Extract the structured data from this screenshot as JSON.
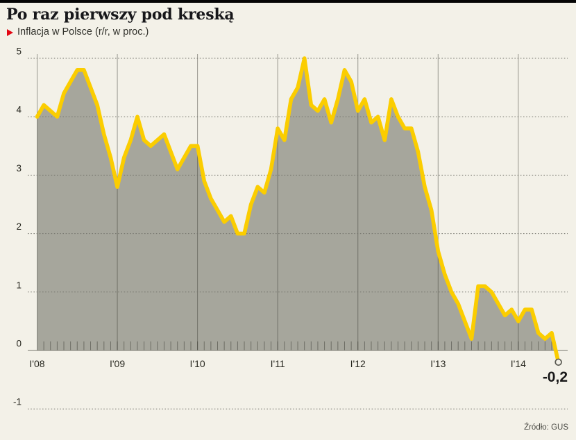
{
  "header": {
    "title": "Po raz pierwszy pod kreską",
    "subtitle": "Inflacja w Polsce (r/r, w proc.)"
  },
  "chart_data": {
    "type": "area",
    "title": "Po raz pierwszy pod kreską",
    "subtitle": "Inflacja w Polsce (r/r, w proc.)",
    "source": "Źródło: GUS",
    "x_start": "2008-01",
    "x_end": "2014-07",
    "x_tick_labels": [
      "I'08",
      "I'09",
      "I'10",
      "I'11",
      "I'12",
      "I'13",
      "I'14"
    ],
    "y_ticks": [
      5,
      4,
      3,
      2,
      1,
      0,
      -1
    ],
    "ylim": [
      -1,
      5
    ],
    "grid": {
      "horizontal": "dotted",
      "vertical": "solid yearly lines",
      "monthly_ticks_on_baseline": true
    },
    "series": [
      {
        "name": "Inflacja w Polsce (r/r, w proc.)",
        "monthly_values": [
          4.0,
          4.2,
          4.1,
          4.0,
          4.4,
          4.6,
          4.8,
          4.8,
          4.5,
          4.2,
          3.7,
          3.3,
          2.8,
          3.3,
          3.6,
          4.0,
          3.6,
          3.5,
          3.6,
          3.7,
          3.4,
          3.1,
          3.3,
          3.5,
          3.5,
          2.9,
          2.6,
          2.4,
          2.2,
          2.3,
          2.0,
          2.0,
          2.5,
          2.8,
          2.7,
          3.1,
          3.8,
          3.6,
          4.3,
          4.5,
          5.0,
          4.2,
          4.1,
          4.3,
          3.9,
          4.3,
          4.8,
          4.6,
          4.1,
          4.3,
          3.9,
          4.0,
          3.6,
          4.3,
          4.0,
          3.8,
          3.8,
          3.4,
          2.8,
          2.4,
          1.7,
          1.3,
          1.0,
          0.8,
          0.5,
          0.2,
          1.1,
          1.1,
          1.0,
          0.8,
          0.6,
          0.7,
          0.5,
          0.7,
          0.7,
          0.3,
          0.2,
          0.3,
          -0.2
        ]
      }
    ],
    "end_value": -0.2,
    "end_label": "-0,2",
    "colors": {
      "line": "#fbcd00",
      "area_fill": "#a6a69c",
      "background": "#f3f1e8",
      "accent_red": "#e30613",
      "axis_text": "#27271f",
      "grid_dotted": "#73736b",
      "marker_stroke": "#5a5a52",
      "top_bar": "#050505"
    }
  }
}
